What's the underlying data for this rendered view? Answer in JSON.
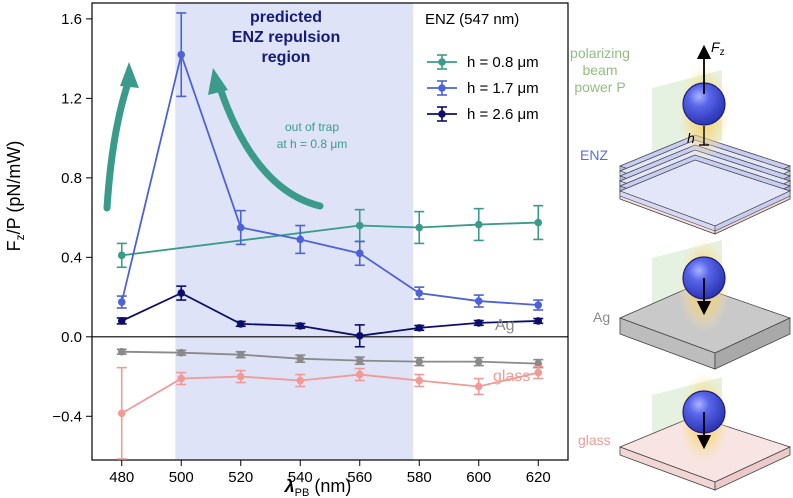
{
  "chart_data": {
    "type": "line",
    "xlabel": "λ",
    "xlabel_sub": "PB",
    "xlabel_unit": " (nm)",
    "ylabel_main": "F",
    "ylabel_sub": "z",
    "ylabel_rest": "/P (pN/mW)",
    "xlim": [
      470,
      630
    ],
    "ylim": [
      -0.62,
      1.68
    ],
    "xticks": [
      480,
      500,
      520,
      540,
      560,
      580,
      600,
      620
    ],
    "yticks": [
      -0.4,
      0.0,
      0.4,
      0.8,
      1.2,
      1.6
    ],
    "ytick_labels": [
      "−0.4",
      "0.0",
      "0.4",
      "0.8",
      "1.2",
      "1.6"
    ],
    "legend_title": "ENZ (547 nm)",
    "legend_position": "top-right",
    "shaded_region": {
      "x": [
        498,
        578
      ],
      "color": "#dfe3f7",
      "label": "predicted\nENZ repulsion\nregion"
    },
    "series": [
      {
        "name": "h = 0.8 μm",
        "legend_label": "h = 0.8 μm",
        "color": "#3a9b8b",
        "x": [
          480,
          560,
          580,
          600,
          620
        ],
        "y": [
          0.41,
          0.56,
          0.55,
          0.565,
          0.575
        ],
        "err": [
          0.06,
          0.08,
          0.08,
          0.08,
          0.085
        ]
      },
      {
        "name": "h = 1.7 μm",
        "legend_label": "h = 1.7 μm",
        "color": "#4d62d6",
        "x": [
          480,
          500,
          520,
          540,
          560,
          580,
          600,
          620
        ],
        "y": [
          0.175,
          1.42,
          0.55,
          0.49,
          0.42,
          0.22,
          0.18,
          0.16
        ],
        "err": [
          0.03,
          0.21,
          0.085,
          0.07,
          0.06,
          0.03,
          0.03,
          0.025
        ]
      },
      {
        "name": "h = 2.6 μm",
        "legend_label": "h = 2.6 μm",
        "color": "#0b0f6b",
        "x": [
          480,
          500,
          520,
          540,
          560,
          580,
          600,
          620
        ],
        "y": [
          0.08,
          0.22,
          0.065,
          0.055,
          0.005,
          0.045,
          0.07,
          0.08
        ],
        "err": [
          0.015,
          0.035,
          0.012,
          0.012,
          0.055,
          0.012,
          0.012,
          0.012
        ]
      },
      {
        "name": "Ag",
        "label": "Ag",
        "color": "#8a8a8a",
        "x": [
          480,
          500,
          520,
          540,
          560,
          580,
          600,
          620
        ],
        "y": [
          -0.075,
          -0.08,
          -0.09,
          -0.11,
          -0.12,
          -0.125,
          -0.125,
          -0.135
        ],
        "err": [
          0.012,
          0.012,
          0.015,
          0.018,
          0.018,
          0.02,
          0.02,
          0.02
        ]
      },
      {
        "name": "glass",
        "label": "glass",
        "color": "#f29a95",
        "x": [
          480,
          500,
          520,
          540,
          560,
          580,
          600,
          620
        ],
        "y": [
          -0.385,
          -0.21,
          -0.2,
          -0.22,
          -0.19,
          -0.22,
          -0.25,
          -0.18
        ],
        "err": [
          0.23,
          0.03,
          0.03,
          0.03,
          0.03,
          0.03,
          0.04,
          0.03
        ]
      }
    ],
    "annotation": {
      "text_1": "out of trap",
      "text_2": "at h = 0.8 μm",
      "color": "#3a9b8b"
    }
  },
  "illustration": {
    "beam_label_1": "polarizing",
    "beam_label_2": "beam",
    "beam_label_3": "power P",
    "force_label": "F",
    "force_sub": "z",
    "h_label": "h",
    "enz_label": "ENZ",
    "ag_label": "Ag",
    "glass_label": "glass",
    "colors": {
      "beam_text": "#8fbf7f",
      "enz": "#5a6fd6",
      "ag": "#8a8a8a",
      "glass": "#f29a95",
      "particle": "#4b5be0"
    }
  }
}
